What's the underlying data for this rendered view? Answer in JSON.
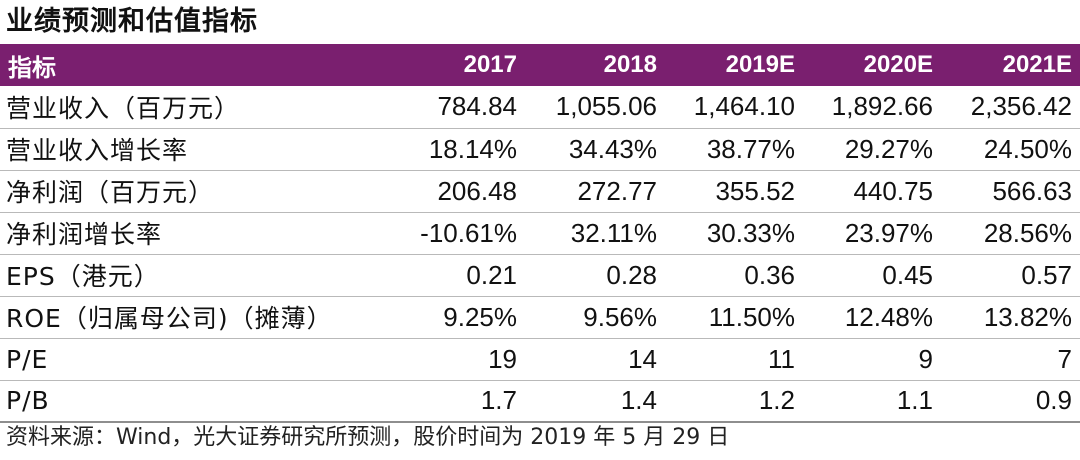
{
  "title": "业绩预测和估值指标",
  "table": {
    "header": [
      "指标",
      "2017",
      "2018",
      "2019E",
      "2020E",
      "2021E"
    ],
    "rows": [
      [
        "营业收入（百万元）",
        "784.84",
        "1,055.06",
        "1,464.10",
        "1,892.66",
        "2,356.42"
      ],
      [
        "营业收入增长率",
        "18.14%",
        "34.43%",
        "38.77%",
        "29.27%",
        "24.50%"
      ],
      [
        "净利润（百万元）",
        "206.48",
        "272.77",
        "355.52",
        "440.75",
        "566.63"
      ],
      [
        "净利润增长率",
        "-10.61%",
        "32.11%",
        "30.33%",
        "23.97%",
        "28.56%"
      ],
      [
        "EPS（港元）",
        "0.21",
        "0.28",
        "0.36",
        "0.45",
        "0.57"
      ],
      [
        "ROE（归属母公司)（摊薄）",
        "9.25%",
        "9.56%",
        "11.50%",
        "12.48%",
        "13.82%"
      ],
      [
        "P/E",
        "19",
        "14",
        "11",
        "9",
        "7"
      ],
      [
        "P/B",
        "1.7",
        "1.4",
        "1.2",
        "1.1",
        "0.9"
      ]
    ]
  },
  "source": "资料来源：Wind，光大证券研究所预测，股价时间为 2019 年 5 月 29 日",
  "colors": {
    "header_bg": "#7a1f6f",
    "header_text": "#ffffff"
  }
}
